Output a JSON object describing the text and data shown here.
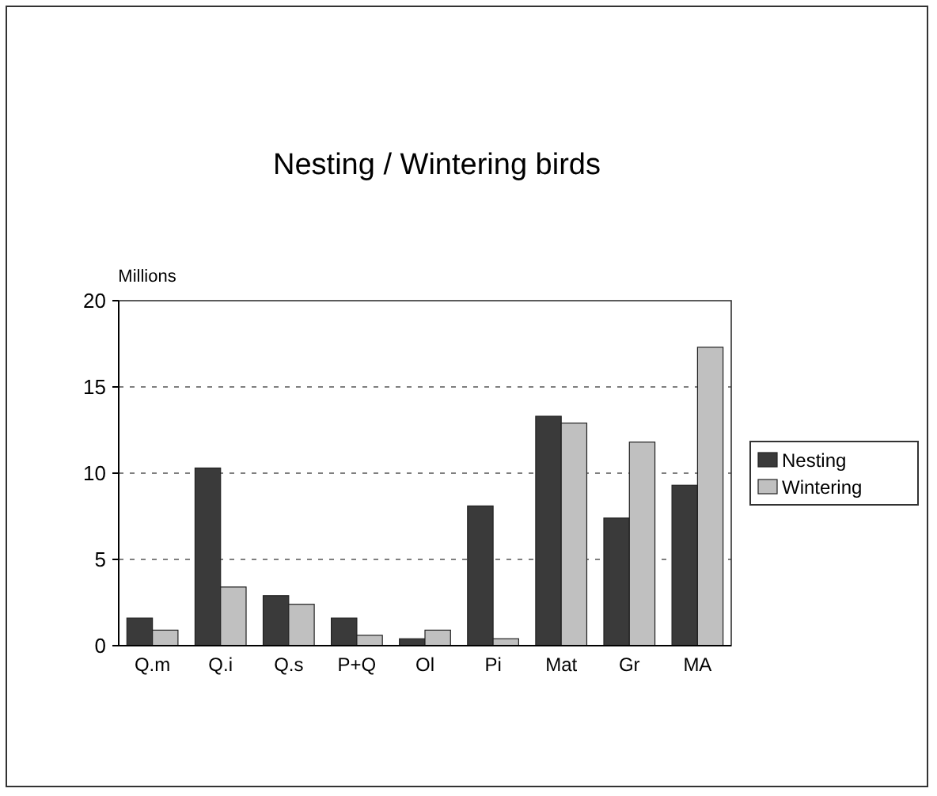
{
  "chart_data": {
    "type": "bar",
    "title": "Nesting / Wintering birds",
    "ylabel": "Millions",
    "categories": [
      "Q.m",
      "Q.i",
      "Q.s",
      "P+Q",
      "Ol",
      "Pi",
      "Mat",
      "Gr",
      "MA"
    ],
    "series": [
      {
        "name": "Nesting",
        "color": "#3a3a3a",
        "values": [
          1.6,
          10.3,
          2.9,
          1.6,
          0.4,
          8.1,
          13.3,
          7.4,
          9.3
        ]
      },
      {
        "name": "Wintering",
        "color": "#c0c0c0",
        "values": [
          0.9,
          3.4,
          2.4,
          0.6,
          0.9,
          0.4,
          12.9,
          11.8,
          17.3
        ]
      }
    ],
    "ylim": [
      0,
      20
    ],
    "yticks": [
      0,
      5,
      10,
      15,
      20
    ],
    "grid": "y",
    "legend": "right"
  }
}
